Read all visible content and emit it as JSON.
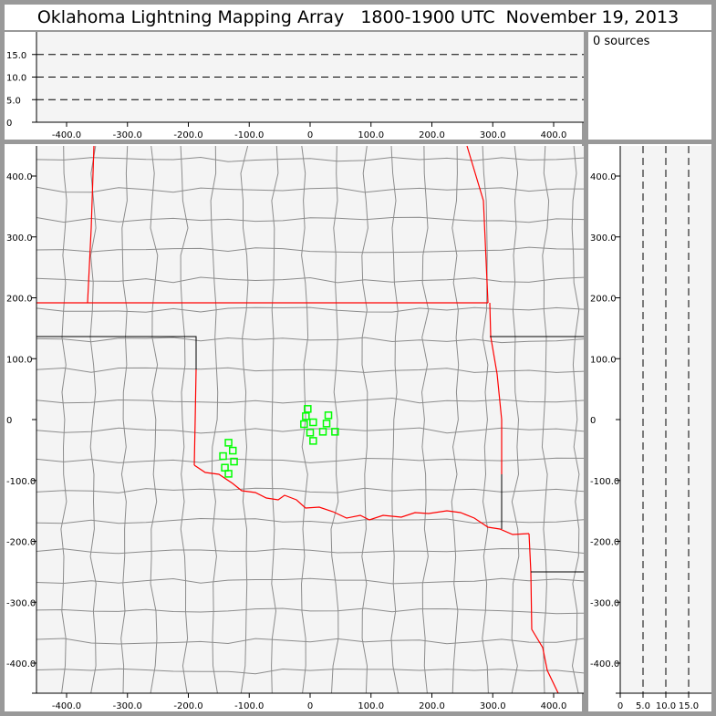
{
  "title": "Oklahoma Lightning Mapping Array   1800-1900 UTC  November 19, 2013",
  "sources_label": "0 sources",
  "colors": {
    "background": "#999999",
    "panel": "#ffffff",
    "plot": "#f4f4f4",
    "state_border": "#ff0000",
    "county": "#8c8c8c",
    "points": "#00ff00"
  },
  "chart_data": [
    {
      "type": "scatter",
      "panel": "plan-view",
      "xlim": [
        -450,
        450
      ],
      "ylim": [
        -450,
        450
      ],
      "xticks": [
        -400,
        -300,
        -200,
        -100,
        0,
        100,
        200,
        300,
        400
      ],
      "xtick_labels": [
        "-400.0",
        "-300.0",
        "-200.0",
        "-100.0",
        "0",
        "100.0",
        "200.0",
        "300.0",
        "400.0"
      ],
      "yticks": [
        400,
        300,
        200,
        100,
        0,
        -100,
        -200,
        -300,
        -400
      ],
      "ytick_labels": [
        "400.0",
        "300.0",
        "200.0",
        "100.0",
        "0",
        "-100.0",
        "-200.0",
        "-300.0",
        "-400.0"
      ],
      "marker": "open-square",
      "points": [
        [
          -4,
          17.5
        ],
        [
          -7,
          5.5
        ],
        [
          30,
          7
        ],
        [
          -10,
          -7.5
        ],
        [
          5,
          -4.5
        ],
        [
          27,
          -6.5
        ],
        [
          0,
          -21.5
        ],
        [
          21,
          -20
        ],
        [
          41,
          -20
        ],
        [
          5,
          -35
        ],
        [
          -134,
          -38
        ],
        [
          -127,
          -51
        ],
        [
          -143,
          -60
        ],
        [
          -125,
          -69
        ],
        [
          -140,
          -79
        ],
        [
          -134,
          -89
        ]
      ]
    },
    {
      "type": "scatter",
      "panel": "east-west-altitude",
      "xlim": [
        -450,
        450
      ],
      "ylim": [
        0,
        20
      ],
      "xticks": [
        -400,
        -300,
        -200,
        -100,
        0,
        100,
        200,
        300,
        400
      ],
      "xtick_labels": [
        "-400.0",
        "-300.0",
        "-200.0",
        "-100.0",
        "0",
        "100.0",
        "200.0",
        "300.0",
        "400.0"
      ],
      "yticks": [
        0,
        5,
        10,
        15
      ],
      "ytick_labels": [
        "0",
        "5.0",
        "10.0",
        "15.0"
      ],
      "dashed_grid": [
        5,
        10,
        15
      ],
      "points": []
    },
    {
      "type": "scatter",
      "panel": "north-south-altitude",
      "xlim": [
        0,
        20
      ],
      "ylim": [
        -450,
        450
      ],
      "xticks": [
        0,
        5,
        10,
        15
      ],
      "xtick_labels": [
        "0",
        "5.0",
        "10.0",
        "15.0"
      ],
      "yticks": [
        400,
        300,
        200,
        100,
        0,
        -100,
        -200,
        -300,
        -400
      ],
      "ytick_labels": [
        "400.0",
        "300.0",
        "200.0",
        "100.0",
        "0",
        "-100.0",
        "-200.0",
        "-300.0",
        "-400.0"
      ],
      "dashed_grid": [
        5,
        10,
        15
      ],
      "points": []
    }
  ]
}
